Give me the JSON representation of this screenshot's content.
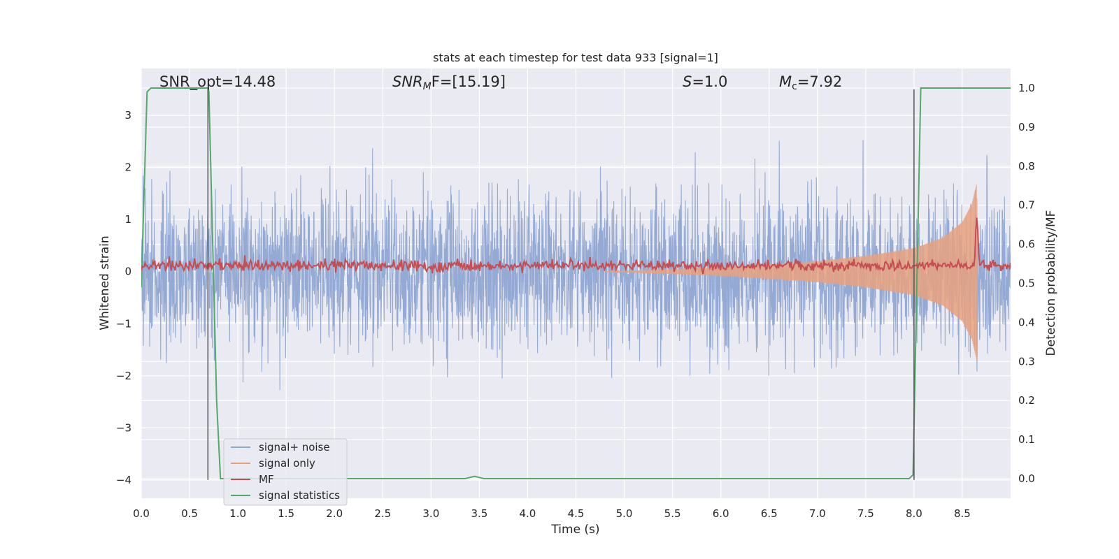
{
  "chart_data": {
    "type": "line",
    "title": "stats at each timestep for test data 933 [signal=1]",
    "xlabel": "Time (s)",
    "ylabel_left": "Whitened strain",
    "ylabel_right": "Detection probability/MF",
    "xlim": [
      0.0,
      9.0
    ],
    "ylim_left": [
      -4.35,
      3.9
    ],
    "ylim_right": [
      -0.05,
      1.05
    ],
    "x_ticks": [
      "0.0",
      "0.5",
      "1.0",
      "1.5",
      "2.0",
      "2.5",
      "3.0",
      "3.5",
      "4.0",
      "4.5",
      "5.0",
      "5.5",
      "6.0",
      "6.5",
      "7.0",
      "7.5",
      "8.0",
      "8.5"
    ],
    "y_ticks_left": [
      "3",
      "2",
      "1",
      "0",
      "−1",
      "−2",
      "−3",
      "−4"
    ],
    "y_ticks_right": [
      "1.0",
      "0.9",
      "0.8",
      "0.7",
      "0.6",
      "0.5",
      "0.4",
      "0.3",
      "0.2",
      "0.1",
      "0.0"
    ],
    "grid": true,
    "legend_position": "lower-left",
    "annotations": {
      "snr_opt": "SNR_opt=14.48",
      "snr_mf_prefix": "SNR",
      "snr_mf_sub": "M",
      "snr_mf_suffix": "F=[15.19]",
      "s_prefix": "S",
      "s_suffix": "=1.0",
      "mc_prefix": "M",
      "mc_sub": "c",
      "mc_suffix": "=7.92"
    },
    "series": [
      {
        "name": "signal+ noise",
        "color": "#8fa6d2",
        "axis": "left",
        "amplitude_std": 0.75,
        "x_start": 0.0,
        "x_end": 9.0
      },
      {
        "name": "signal only",
        "color": "#e8a17f",
        "axis": "left",
        "envelope": [
          [
            4.8,
            0.0
          ],
          [
            6.0,
            0.08
          ],
          [
            7.0,
            0.2
          ],
          [
            7.5,
            0.3
          ],
          [
            8.0,
            0.45
          ],
          [
            8.3,
            0.65
          ],
          [
            8.5,
            0.95
          ],
          [
            8.6,
            1.3
          ],
          [
            8.65,
            1.7
          ],
          [
            8.66,
            0.0
          ]
        ]
      },
      {
        "name": "MF",
        "color": "#c44e52",
        "axis": "right",
        "baseline": 0.545,
        "peak": {
          "x": 8.65,
          "y": 0.67
        }
      },
      {
        "name": "signal statistics",
        "color": "#55a868",
        "axis": "right",
        "x": [
          0.0,
          0.06,
          0.1,
          0.2,
          0.5,
          0.69,
          0.7,
          0.78,
          0.82,
          3.35,
          3.45,
          3.55,
          7.95,
          7.99,
          8.07,
          8.2,
          9.0
        ],
        "y": [
          0.49,
          0.99,
          1.0,
          1.0,
          1.0,
          1.0,
          0.99,
          0.2,
          0.0,
          0.0,
          0.006,
          0.0,
          0.0,
          0.01,
          1.0,
          1.0,
          1.0
        ]
      }
    ],
    "vertical_lines": [
      {
        "x": 0.69,
        "y_from": -4.0,
        "y_to": 3.5,
        "color": "#555555"
      },
      {
        "x": 8.0,
        "y_from": -4.0,
        "y_to": 3.5,
        "color": "#555555"
      }
    ]
  }
}
